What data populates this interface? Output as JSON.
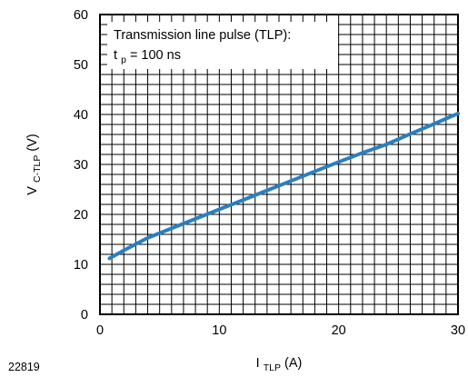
{
  "figure_id": "22819",
  "chart_data": {
    "type": "line",
    "xlim": [
      0,
      30
    ],
    "ylim": [
      0,
      60
    ],
    "x_ticks": [
      "0",
      "10",
      "20",
      "30"
    ],
    "y_ticks": [
      "0",
      "10",
      "20",
      "30",
      "40",
      "50",
      "60"
    ],
    "xlabel": {
      "main": "I",
      "sub": "TLP",
      "unit": " (A)"
    },
    "ylabel": {
      "main": "V",
      "sub": "C-TLP",
      "unit": " (V)"
    },
    "grid": true,
    "annotation": {
      "line1": "Transmission line pulse (TLP):",
      "line2_main": "t",
      "line2_sub": "p",
      "line2_rest": " = 100 ns"
    },
    "series_color": "#2a7fc0",
    "series": [
      {
        "x": [
          0.8,
          2,
          4,
          6,
          8,
          10,
          12,
          14,
          16,
          18,
          20,
          22,
          24,
          26,
          28,
          30
        ],
        "y": [
          11.2,
          12.8,
          15.3,
          17.2,
          19.1,
          21.0,
          22.9,
          24.8,
          26.7,
          28.6,
          30.5,
          32.3,
          34.0,
          36.1,
          38.1,
          40.2
        ]
      }
    ]
  }
}
